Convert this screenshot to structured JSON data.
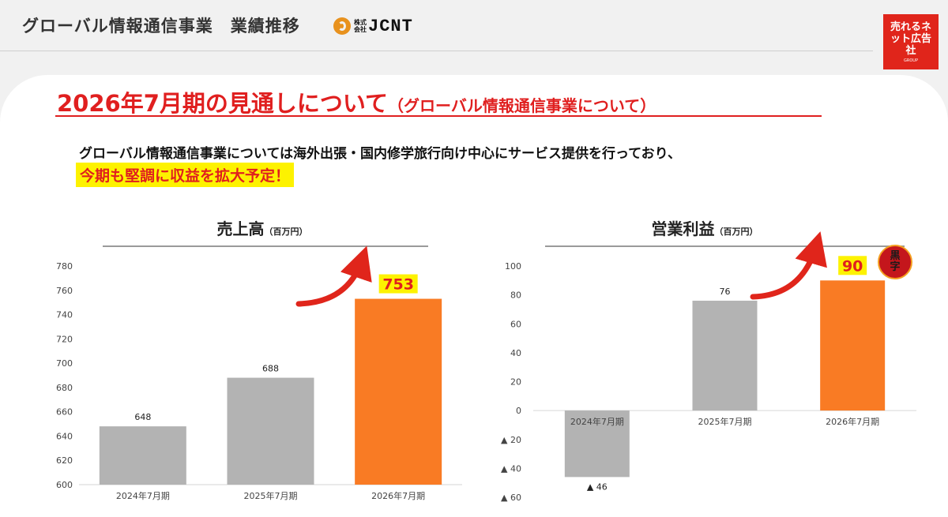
{
  "header": {
    "title": "グローバル情報通信事業　業績推移",
    "company_logo_small": "株式会社",
    "company_logo_name": "JCNT",
    "group_logo_text": "売れるネット広告社",
    "group_logo_sub": "GROUP"
  },
  "heading": {
    "main": "2026年7月期の見通しについて",
    "sub": "（グローバル情報通信事業について）"
  },
  "description": "グローバル情報通信事業については海外出張・国内修学旅行向け中心にサービス提供を行っており、",
  "highlight": "今期も堅調に収益を拡大予定！",
  "badge": {
    "line1": "黒",
    "line2": "字"
  },
  "colors": {
    "accent_red": "#e01f1f",
    "bar_gray": "#b3b3b3",
    "bar_orange": "#f97b24",
    "highlight_yellow": "#fdf200"
  },
  "chart_data": [
    {
      "type": "bar",
      "title": "売上高",
      "unit": "（百万円）",
      "categories": [
        "2024年7月期",
        "2025年7月期",
        "2026年7月期"
      ],
      "values": [
        648,
        688,
        753
      ],
      "value_labels": [
        "648",
        "688",
        "753"
      ],
      "ylim": [
        600,
        780
      ],
      "yticks": [
        600,
        620,
        640,
        660,
        680,
        700,
        720,
        740,
        760,
        780
      ],
      "ytick_labels": [
        "600",
        "620",
        "640",
        "660",
        "680",
        "700",
        "720",
        "740",
        "760",
        "780"
      ],
      "grid": false,
      "bar_colors": [
        "#b3b3b3",
        "#b3b3b3",
        "#f97b24"
      ],
      "highlight_last": true
    },
    {
      "type": "bar",
      "title": "営業利益",
      "unit": "（百万円）",
      "categories": [
        "2024年7月期",
        "2025年7月期",
        "2026年7月期"
      ],
      "values": [
        -46,
        76,
        90
      ],
      "value_labels": [
        "▲ 46",
        "76",
        "90"
      ],
      "ylim": [
        -60,
        100
      ],
      "yticks": [
        -60,
        -40,
        -20,
        0,
        20,
        40,
        60,
        80,
        100
      ],
      "ytick_labels": [
        "▲ 60",
        "▲ 40",
        "▲ 20",
        "0",
        "20",
        "40",
        "60",
        "80",
        "100"
      ],
      "grid": false,
      "bar_colors": [
        "#b3b3b3",
        "#b3b3b3",
        "#f97b24"
      ],
      "highlight_last": true
    }
  ]
}
